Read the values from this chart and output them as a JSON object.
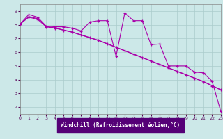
{
  "xlabel": "Windchill (Refroidissement éolien,°C)",
  "xlim": [
    0,
    23
  ],
  "ylim": [
    1.5,
    9.5
  ],
  "yticks": [
    2,
    3,
    4,
    5,
    6,
    7,
    8,
    9
  ],
  "xticks": [
    0,
    1,
    2,
    3,
    4,
    5,
    6,
    7,
    8,
    9,
    10,
    11,
    12,
    13,
    14,
    15,
    16,
    17,
    18,
    19,
    20,
    21,
    22,
    23
  ],
  "bg_color": "#cce8e8",
  "grid_color": "#aacccc",
  "line_color": "#aa00aa",
  "xlabel_bg": "#550077",
  "line1_x": [
    0,
    1,
    2,
    3,
    4,
    5,
    6,
    7,
    8,
    9,
    10,
    11,
    12,
    13,
    14,
    15,
    16,
    17,
    18,
    19,
    20,
    21,
    22,
    23
  ],
  "line1_y": [
    8.05,
    8.75,
    8.55,
    7.9,
    7.85,
    7.85,
    7.75,
    7.55,
    8.2,
    8.3,
    8.3,
    5.7,
    8.85,
    8.3,
    8.3,
    6.55,
    6.6,
    5.0,
    5.0,
    5.0,
    4.55,
    4.5,
    3.9,
    1.7
  ],
  "line2_x": [
    0,
    1,
    2,
    3,
    4,
    5,
    6,
    7,
    8,
    9,
    10,
    11,
    12,
    13,
    14,
    15,
    16,
    17,
    18,
    19,
    20,
    21,
    22,
    23
  ],
  "line2_y": [
    8.05,
    8.55,
    8.4,
    7.85,
    7.75,
    7.6,
    7.45,
    7.25,
    7.05,
    6.85,
    6.6,
    6.35,
    6.1,
    5.85,
    5.6,
    5.35,
    5.1,
    4.85,
    4.6,
    4.35,
    4.1,
    3.85,
    3.55,
    3.25
  ],
  "line3_x": [
    0,
    1,
    2,
    3,
    4,
    5,
    6,
    7,
    8,
    9,
    10,
    11,
    12,
    13,
    14,
    15,
    16,
    17,
    18,
    19,
    20,
    21,
    22,
    23
  ],
  "line3_y": [
    8.05,
    8.6,
    8.45,
    7.87,
    7.77,
    7.62,
    7.47,
    7.27,
    7.07,
    6.87,
    6.62,
    6.37,
    6.12,
    5.87,
    5.62,
    5.37,
    5.12,
    4.87,
    4.62,
    4.37,
    4.12,
    3.87,
    3.57,
    3.27
  ]
}
